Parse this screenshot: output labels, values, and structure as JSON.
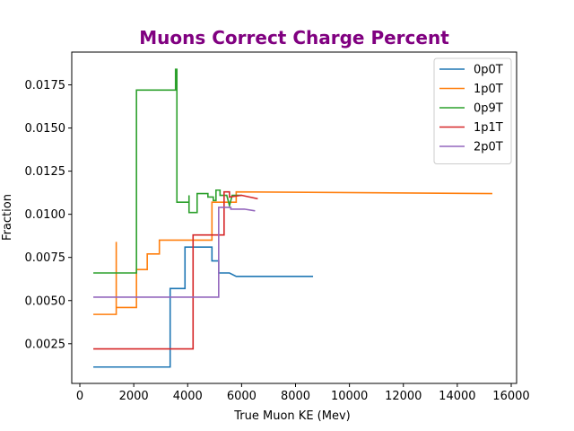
{
  "chart_data": {
    "type": "line",
    "title": "Muons Correct Charge Percent",
    "title_color": "#800080",
    "xlabel": "True Muon KE (Mev)",
    "ylabel": "Fraction",
    "xlim": [
      -300,
      16200
    ],
    "ylim": [
      0.0002,
      0.0194
    ],
    "xticks": [
      0,
      2000,
      4000,
      6000,
      8000,
      10000,
      12000,
      14000,
      16000
    ],
    "xtick_labels": [
      "0",
      "2000",
      "4000",
      "6000",
      "8000",
      "10000",
      "12000",
      "14000",
      "16000"
    ],
    "yticks": [
      0.0025,
      0.005,
      0.0075,
      0.01,
      0.0125,
      0.015,
      0.0175
    ],
    "ytick_labels": [
      "0.0025",
      "0.0050",
      "0.0075",
      "0.0100",
      "0.0125",
      "0.0150",
      "0.0175"
    ],
    "grid": false,
    "legend_position": "top-right",
    "series": [
      {
        "name": "0p0T",
        "color": "#1f77b4",
        "points": [
          [
            500,
            0.00115
          ],
          [
            3350,
            0.00115
          ],
          [
            3350,
            0.0057
          ],
          [
            3900,
            0.0057
          ],
          [
            3900,
            0.0081
          ],
          [
            4900,
            0.0081
          ],
          [
            4900,
            0.0073
          ],
          [
            5150,
            0.0073
          ],
          [
            5150,
            0.0066
          ],
          [
            5550,
            0.0066
          ],
          [
            5800,
            0.0064
          ],
          [
            8650,
            0.0064
          ]
        ]
      },
      {
        "name": "1p0T",
        "color": "#ff7f0e",
        "points": [
          [
            500,
            0.0042
          ],
          [
            1350,
            0.0042
          ],
          [
            1350,
            0.0084
          ],
          [
            1350,
            0.0046
          ],
          [
            2100,
            0.0046
          ],
          [
            2100,
            0.0068
          ],
          [
            2500,
            0.0068
          ],
          [
            2500,
            0.0077
          ],
          [
            2950,
            0.0077
          ],
          [
            2950,
            0.0085
          ],
          [
            4900,
            0.0085
          ],
          [
            4900,
            0.0107
          ],
          [
            5800,
            0.0107
          ],
          [
            5800,
            0.0113
          ],
          [
            15300,
            0.0112
          ]
        ]
      },
      {
        "name": "0p9T",
        "color": "#2ca02c",
        "points": [
          [
            500,
            0.0066
          ],
          [
            2100,
            0.0066
          ],
          [
            2100,
            0.0172
          ],
          [
            3550,
            0.0172
          ],
          [
            3550,
            0.0184
          ],
          [
            3600,
            0.0184
          ],
          [
            3600,
            0.0107
          ],
          [
            4050,
            0.0107
          ],
          [
            4050,
            0.0111
          ],
          [
            4050,
            0.0101
          ],
          [
            4350,
            0.0101
          ],
          [
            4350,
            0.0112
          ],
          [
            4750,
            0.0112
          ],
          [
            4750,
            0.011
          ],
          [
            4950,
            0.011
          ],
          [
            4950,
            0.0108
          ],
          [
            5050,
            0.0108
          ],
          [
            5050,
            0.0114
          ],
          [
            5200,
            0.0114
          ],
          [
            5200,
            0.0111
          ],
          [
            5450,
            0.0111
          ],
          [
            5550,
            0.0105
          ],
          [
            5650,
            0.0111
          ],
          [
            6000,
            0.0111
          ]
        ]
      },
      {
        "name": "1p1T",
        "color": "#d62728",
        "points": [
          [
            500,
            0.0022
          ],
          [
            4200,
            0.0022
          ],
          [
            4200,
            0.0088
          ],
          [
            5350,
            0.0088
          ],
          [
            5350,
            0.0113
          ],
          [
            5550,
            0.0113
          ],
          [
            5550,
            0.011
          ],
          [
            6000,
            0.0111
          ],
          [
            6600,
            0.0109
          ]
        ]
      },
      {
        "name": "2p0T",
        "color": "#9467bd",
        "points": [
          [
            500,
            0.0052
          ],
          [
            5150,
            0.0052
          ],
          [
            5150,
            0.0104
          ],
          [
            5600,
            0.0104
          ],
          [
            5600,
            0.0103
          ],
          [
            6100,
            0.0103
          ],
          [
            6500,
            0.0102
          ]
        ]
      }
    ]
  }
}
